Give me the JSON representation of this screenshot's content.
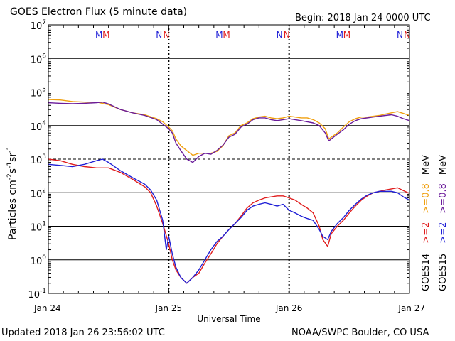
{
  "header": {
    "title": "GOES Electron Flux (5 minute data)",
    "begin": "Begin: 2018 Jan 24 0000 UTC"
  },
  "footer": {
    "updated": "Updated 2018 Jan 26 23:56:02 UTC",
    "credit": "NOAA/SWPC Boulder, CO USA"
  },
  "chart_data": {
    "type": "line",
    "title": "GOES Electron Flux (5 minute data)",
    "xlabel": "Universal Time",
    "ylabel": "Particles cm-2s-1sr-1",
    "ylabel_parts": [
      "Particles cm",
      "-2",
      "s",
      "-1",
      "sr",
      "-1"
    ],
    "y_scale": "log",
    "ylim": [
      0.1,
      10000000
    ],
    "y_ticks": [
      {
        "value": 0.1,
        "base": "10",
        "exp": "-1"
      },
      {
        "value": 1,
        "base": "10",
        "exp": "0"
      },
      {
        "value": 10,
        "base": "10",
        "exp": "1"
      },
      {
        "value": 100,
        "base": "10",
        "exp": "2"
      },
      {
        "value": 1000,
        "base": "10",
        "exp": "3"
      },
      {
        "value": 10000,
        "base": "10",
        "exp": "4"
      },
      {
        "value": 100000,
        "base": "10",
        "exp": "5"
      },
      {
        "value": 1000000,
        "base": "10",
        "exp": "6"
      },
      {
        "value": 10000000,
        "base": "10",
        "exp": "7"
      }
    ],
    "xlim_days": [
      0,
      3
    ],
    "x_ticks": [
      {
        "value": 0,
        "label": "Jan 24"
      },
      {
        "value": 1,
        "label": "Jan 25"
      },
      {
        "value": 2,
        "label": "Jan 26"
      },
      {
        "value": 3,
        "label": "Jan 27"
      }
    ],
    "threshold_line": {
      "value": 1000,
      "style": "dashed"
    },
    "day_boundary_days": [
      1,
      2
    ],
    "markers": [
      {
        "day": 0.42,
        "text": "M",
        "color": "#1f1fd6"
      },
      {
        "day": 0.48,
        "text": "M",
        "color": "#e01e1e"
      },
      {
        "day": 0.92,
        "text": "N",
        "color": "#1f1fd6"
      },
      {
        "day": 0.98,
        "text": "N",
        "color": "#e01e1e"
      },
      {
        "day": 1.42,
        "text": "M",
        "color": "#1f1fd6"
      },
      {
        "day": 1.48,
        "text": "M",
        "color": "#e01e1e"
      },
      {
        "day": 1.92,
        "text": "N",
        "color": "#1f1fd6"
      },
      {
        "day": 1.98,
        "text": "N",
        "color": "#e01e1e"
      },
      {
        "day": 2.42,
        "text": "M",
        "color": "#1f1fd6"
      },
      {
        "day": 2.48,
        "text": "M",
        "color": "#e01e1e"
      },
      {
        "day": 2.92,
        "text": "N",
        "color": "#1f1fd6"
      },
      {
        "day": 2.98,
        "text": "N",
        "color": "#e01e1e"
      }
    ],
    "legend": {
      "placement": "right",
      "columns": [
        {
          "name": "GOES14",
          "entries": [
            {
              "label": "MeV",
              "color": "#000000"
            },
            {
              "label": ">=0.8",
              "color": "#f0a010"
            },
            {
              "label": ">=2",
              "color": "#e01e1e"
            }
          ]
        },
        {
          "name": "GOES15",
          "entries": [
            {
              "label": "MeV",
              "color": "#000000"
            },
            {
              "label": ">=0.8",
              "color": "#6a1b9a"
            },
            {
              "label": ">=2",
              "color": "#1f1fd6"
            }
          ]
        }
      ]
    },
    "series": [
      {
        "name": "GOES14 >=0.8 MeV",
        "color": "#f0a010",
        "points": [
          [
            0,
            60000
          ],
          [
            0.1,
            58000
          ],
          [
            0.2,
            52000
          ],
          [
            0.3,
            50000
          ],
          [
            0.4,
            50000
          ],
          [
            0.5,
            42000
          ],
          [
            0.6,
            30000
          ],
          [
            0.7,
            24000
          ],
          [
            0.8,
            21000
          ],
          [
            0.9,
            16000
          ],
          [
            0.95,
            13000
          ],
          [
            1.0,
            9000
          ],
          [
            1.03,
            7000
          ],
          [
            1.06,
            4000
          ],
          [
            1.1,
            2500
          ],
          [
            1.15,
            1800
          ],
          [
            1.2,
            1300
          ],
          [
            1.25,
            1500
          ],
          [
            1.3,
            1500
          ],
          [
            1.35,
            1500
          ],
          [
            1.4,
            1700
          ],
          [
            1.45,
            2500
          ],
          [
            1.5,
            5000
          ],
          [
            1.55,
            6000
          ],
          [
            1.6,
            10000
          ],
          [
            1.65,
            12000
          ],
          [
            1.7,
            16000
          ],
          [
            1.75,
            18000
          ],
          [
            1.8,
            19000
          ],
          [
            1.85,
            17000
          ],
          [
            1.9,
            16000
          ],
          [
            1.95,
            17000
          ],
          [
            2.0,
            19000
          ],
          [
            2.05,
            18000
          ],
          [
            2.1,
            17000
          ],
          [
            2.15,
            17000
          ],
          [
            2.2,
            15000
          ],
          [
            2.25,
            12000
          ],
          [
            2.3,
            8000
          ],
          [
            2.33,
            4000
          ],
          [
            2.35,
            4500
          ],
          [
            2.4,
            6000
          ],
          [
            2.45,
            9000
          ],
          [
            2.5,
            13000
          ],
          [
            2.55,
            16000
          ],
          [
            2.6,
            18000
          ],
          [
            2.65,
            18000
          ],
          [
            2.7,
            19000
          ],
          [
            2.75,
            20000
          ],
          [
            2.8,
            22000
          ],
          [
            2.85,
            24000
          ],
          [
            2.9,
            26000
          ],
          [
            2.95,
            23000
          ],
          [
            3.0,
            20000
          ]
        ]
      },
      {
        "name": "GOES15 >=0.8 MeV",
        "color": "#6a1b9a",
        "points": [
          [
            0,
            48000
          ],
          [
            0.1,
            46000
          ],
          [
            0.2,
            45000
          ],
          [
            0.3,
            46000
          ],
          [
            0.4,
            48000
          ],
          [
            0.45,
            50000
          ],
          [
            0.5,
            44000
          ],
          [
            0.6,
            30000
          ],
          [
            0.7,
            24000
          ],
          [
            0.8,
            20000
          ],
          [
            0.9,
            15000
          ],
          [
            0.95,
            11000
          ],
          [
            1.0,
            8000
          ],
          [
            1.03,
            6000
          ],
          [
            1.06,
            3000
          ],
          [
            1.1,
            1800
          ],
          [
            1.15,
            1000
          ],
          [
            1.2,
            800
          ],
          [
            1.25,
            1200
          ],
          [
            1.3,
            1500
          ],
          [
            1.35,
            1400
          ],
          [
            1.4,
            1800
          ],
          [
            1.45,
            2600
          ],
          [
            1.5,
            4500
          ],
          [
            1.55,
            5500
          ],
          [
            1.6,
            9000
          ],
          [
            1.65,
            11000
          ],
          [
            1.7,
            15000
          ],
          [
            1.75,
            17000
          ],
          [
            1.8,
            17000
          ],
          [
            1.85,
            15000
          ],
          [
            1.9,
            14000
          ],
          [
            1.95,
            15000
          ],
          [
            2.0,
            16000
          ],
          [
            2.05,
            15000
          ],
          [
            2.1,
            14000
          ],
          [
            2.15,
            13000
          ],
          [
            2.2,
            12000
          ],
          [
            2.25,
            10000
          ],
          [
            2.3,
            6000
          ],
          [
            2.33,
            3500
          ],
          [
            2.35,
            4000
          ],
          [
            2.4,
            5500
          ],
          [
            2.45,
            7500
          ],
          [
            2.5,
            11000
          ],
          [
            2.55,
            14000
          ],
          [
            2.6,
            16000
          ],
          [
            2.65,
            17000
          ],
          [
            2.7,
            18000
          ],
          [
            2.75,
            19000
          ],
          [
            2.8,
            20000
          ],
          [
            2.85,
            21000
          ],
          [
            2.9,
            19000
          ],
          [
            2.95,
            16000
          ],
          [
            3.0,
            14000
          ]
        ]
      },
      {
        "name": "GOES14 >=2 MeV",
        "color": "#e01e1e",
        "points": [
          [
            0,
            1000
          ],
          [
            0.1,
            900
          ],
          [
            0.2,
            700
          ],
          [
            0.3,
            600
          ],
          [
            0.4,
            550
          ],
          [
            0.5,
            550
          ],
          [
            0.6,
            400
          ],
          [
            0.7,
            250
          ],
          [
            0.8,
            150
          ],
          [
            0.85,
            100
          ],
          [
            0.9,
            40
          ],
          [
            0.95,
            12
          ],
          [
            1.0,
            3
          ],
          [
            1.03,
            1
          ],
          [
            1.06,
            0.5
          ],
          [
            1.1,
            0.3
          ],
          [
            1.15,
            0.2
          ],
          [
            1.2,
            0.3
          ],
          [
            1.25,
            0.4
          ],
          [
            1.3,
            0.8
          ],
          [
            1.35,
            1.5
          ],
          [
            1.4,
            3
          ],
          [
            1.45,
            5
          ],
          [
            1.5,
            8
          ],
          [
            1.55,
            12
          ],
          [
            1.6,
            20
          ],
          [
            1.65,
            35
          ],
          [
            1.7,
            50
          ],
          [
            1.75,
            60
          ],
          [
            1.8,
            70
          ],
          [
            1.85,
            75
          ],
          [
            1.9,
            80
          ],
          [
            1.95,
            80
          ],
          [
            2.0,
            70
          ],
          [
            2.05,
            60
          ],
          [
            2.1,
            45
          ],
          [
            2.15,
            35
          ],
          [
            2.2,
            25
          ],
          [
            2.25,
            10
          ],
          [
            2.28,
            4
          ],
          [
            2.32,
            2.5
          ],
          [
            2.35,
            6
          ],
          [
            2.4,
            10
          ],
          [
            2.45,
            15
          ],
          [
            2.5,
            25
          ],
          [
            2.55,
            40
          ],
          [
            2.6,
            60
          ],
          [
            2.65,
            80
          ],
          [
            2.7,
            100
          ],
          [
            2.75,
            110
          ],
          [
            2.8,
            120
          ],
          [
            2.85,
            130
          ],
          [
            2.9,
            140
          ],
          [
            2.95,
            115
          ],
          [
            3.0,
            95
          ]
        ]
      },
      {
        "name": "GOES15 >=2 MeV",
        "color": "#1f1fd6",
        "points": [
          [
            0,
            700
          ],
          [
            0.1,
            650
          ],
          [
            0.2,
            600
          ],
          [
            0.3,
            700
          ],
          [
            0.4,
            900
          ],
          [
            0.45,
            1000
          ],
          [
            0.5,
            800
          ],
          [
            0.6,
            450
          ],
          [
            0.7,
            280
          ],
          [
            0.8,
            180
          ],
          [
            0.85,
            120
          ],
          [
            0.9,
            60
          ],
          [
            0.95,
            15
          ],
          [
            0.98,
            2
          ],
          [
            1.0,
            5
          ],
          [
            1.03,
            1.5
          ],
          [
            1.06,
            0.6
          ],
          [
            1.1,
            0.3
          ],
          [
            1.15,
            0.2
          ],
          [
            1.2,
            0.3
          ],
          [
            1.25,
            0.5
          ],
          [
            1.3,
            1
          ],
          [
            1.35,
            2
          ],
          [
            1.4,
            3.5
          ],
          [
            1.45,
            5
          ],
          [
            1.5,
            8
          ],
          [
            1.55,
            12
          ],
          [
            1.6,
            18
          ],
          [
            1.65,
            30
          ],
          [
            1.7,
            40
          ],
          [
            1.75,
            45
          ],
          [
            1.8,
            50
          ],
          [
            1.85,
            45
          ],
          [
            1.9,
            40
          ],
          [
            1.95,
            45
          ],
          [
            2.0,
            30
          ],
          [
            2.05,
            25
          ],
          [
            2.1,
            20
          ],
          [
            2.15,
            17
          ],
          [
            2.2,
            15
          ],
          [
            2.25,
            8
          ],
          [
            2.28,
            5
          ],
          [
            2.32,
            4
          ],
          [
            2.35,
            7
          ],
          [
            2.4,
            12
          ],
          [
            2.45,
            18
          ],
          [
            2.5,
            30
          ],
          [
            2.55,
            45
          ],
          [
            2.6,
            65
          ],
          [
            2.65,
            85
          ],
          [
            2.7,
            100
          ],
          [
            2.75,
            110
          ],
          [
            2.8,
            110
          ],
          [
            2.85,
            110
          ],
          [
            2.9,
            100
          ],
          [
            2.95,
            75
          ],
          [
            3.0,
            60
          ]
        ]
      }
    ]
  }
}
